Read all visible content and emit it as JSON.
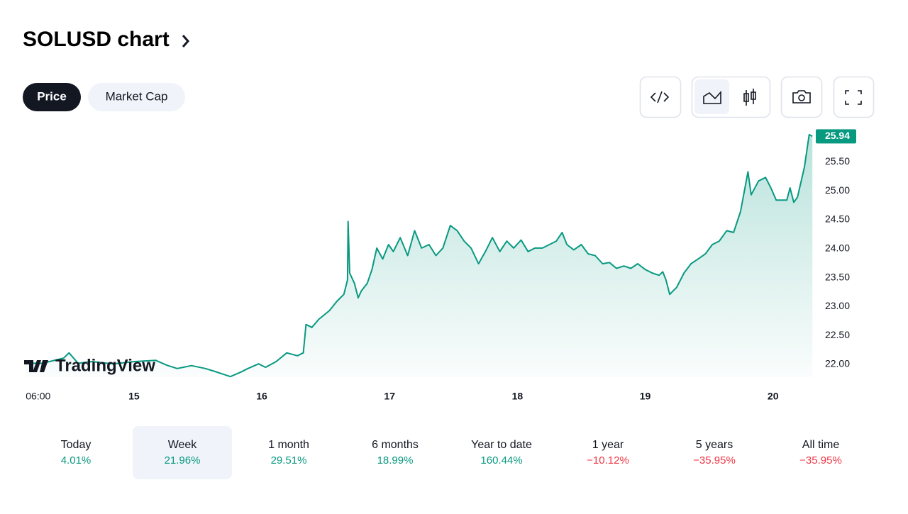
{
  "header": {
    "title": "SOLUSD chart"
  },
  "tabs": [
    "Price",
    "Market Cap"
  ],
  "active_tab": 0,
  "chart_data": {
    "type": "line",
    "color": "#089981",
    "watermark": "TradingView",
    "last_price_label": "25.94",
    "x": [
      3.5,
      6.8,
      10.8,
      11.8,
      13.5,
      16.1,
      20.1,
      24.1,
      28.1,
      30.1,
      32.1,
      34.8,
      37.4,
      38.8,
      40.8,
      42.1,
      44.1,
      45.4,
      47.4,
      48.7,
      50.7,
      52.7,
      54.7,
      55.8,
      56.3,
      57.4,
      58.7,
      60.7,
      62.1,
      63.4,
      64.1,
      64.2,
      64.5,
      65.4,
      66.1,
      66.7,
      67.8,
      68.7,
      69.6,
      70.7,
      71.8,
      72.7,
      74.0,
      75.4,
      76.7,
      78.0,
      79.4,
      80.7,
      82.0,
      83.4,
      84.7,
      86.0,
      87.3,
      88.7,
      90.0,
      91.3,
      92.7,
      94.0,
      95.3,
      96.7,
      98.0,
      99.3,
      100.7,
      102.0,
      103.3,
      104.4,
      105.3,
      106.6,
      108.0,
      109.3,
      110.6,
      112.0,
      113.3,
      114.6,
      116.0,
      117.3,
      118.6,
      120.0,
      121.3,
      122.6,
      123.3,
      123.9,
      124.6,
      125.9,
      127.3,
      128.6,
      129.9,
      131.3,
      132.6,
      133.9,
      135.3,
      136.6,
      137.9,
      139.3,
      139.9,
      141.3,
      142.6,
      143.6,
      144.6,
      145.2,
      146.6,
      147.2,
      147.9,
      148.6,
      149.9,
      150.8,
      151.4
    ],
    "values": [
      22.02,
      22.02,
      22.11,
      22.2,
      22.02,
      22.05,
      22.01,
      22.05,
      22.07,
      21.99,
      21.93,
      21.98,
      21.93,
      21.89,
      21.83,
      21.79,
      21.87,
      21.93,
      22.01,
      21.95,
      22.05,
      22.2,
      22.15,
      22.2,
      22.69,
      22.64,
      22.78,
      22.93,
      23.09,
      23.21,
      23.46,
      24.47,
      23.58,
      23.4,
      23.15,
      23.27,
      23.4,
      23.64,
      24.01,
      23.82,
      24.07,
      23.95,
      24.19,
      23.88,
      24.31,
      24.01,
      24.07,
      23.88,
      24.01,
      24.4,
      24.31,
      24.13,
      24.01,
      23.74,
      23.95,
      24.19,
      23.95,
      24.13,
      24.01,
      24.15,
      23.95,
      24.01,
      24.01,
      24.07,
      24.13,
      24.28,
      24.07,
      23.98,
      24.07,
      23.91,
      23.88,
      23.74,
      23.76,
      23.66,
      23.7,
      23.66,
      23.74,
      23.64,
      23.58,
      23.54,
      23.6,
      23.46,
      23.21,
      23.33,
      23.58,
      23.74,
      23.82,
      23.91,
      24.07,
      24.13,
      24.31,
      24.28,
      24.64,
      25.33,
      24.93,
      25.17,
      25.23,
      25.05,
      24.84,
      24.84,
      24.84,
      25.05,
      24.8,
      24.89,
      25.41,
      25.97,
      25.94
    ],
    "xlim": [
      3.5,
      151.5
    ],
    "xticks": [
      {
        "value": 6,
        "label": "06:00"
      },
      {
        "value": 24,
        "label": "15"
      },
      {
        "value": 48,
        "label": "16"
      },
      {
        "value": 72,
        "label": "17"
      },
      {
        "value": 96,
        "label": "18"
      },
      {
        "value": 120,
        "label": "19"
      },
      {
        "value": 144,
        "label": "20"
      }
    ],
    "ylim": [
      21.78,
      26.03
    ],
    "yticks": [
      {
        "value": 22,
        "label": "22.00"
      },
      {
        "value": 22.5,
        "label": "22.50"
      },
      {
        "value": 23,
        "label": "23.00"
      },
      {
        "value": 23.5,
        "label": "23.50"
      },
      {
        "value": 24,
        "label": "24.00"
      },
      {
        "value": 24.5,
        "label": "24.50"
      },
      {
        "value": 25,
        "label": "25.00"
      },
      {
        "value": 25.5,
        "label": "25.50"
      }
    ]
  },
  "periods": [
    {
      "label": "Today",
      "value": "4.01%",
      "color": "#089981"
    },
    {
      "label": "Week",
      "value": "21.96%",
      "color": "#089981"
    },
    {
      "label": "1 month",
      "value": "29.51%",
      "color": "#089981"
    },
    {
      "label": "6 months",
      "value": "18.99%",
      "color": "#089981"
    },
    {
      "label": "Year to date",
      "value": "160.44%",
      "color": "#089981"
    },
    {
      "label": "1 year",
      "value": "−10.12%",
      "color": "#f23645"
    },
    {
      "label": "5 years",
      "value": "−35.95%",
      "color": "#f23645"
    },
    {
      "label": "All time",
      "value": "−35.95%",
      "color": "#f23645"
    }
  ],
  "selected_period": 1
}
